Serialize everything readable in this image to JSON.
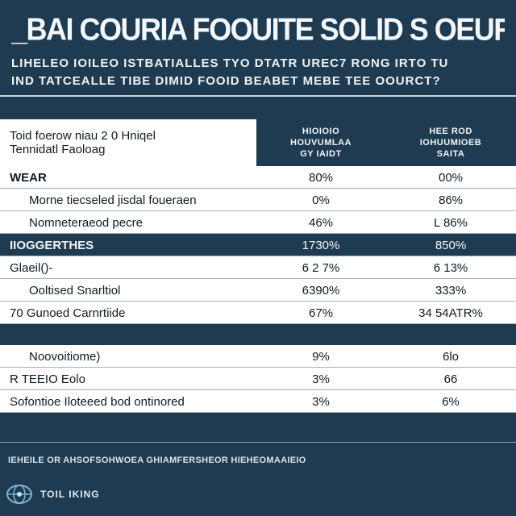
{
  "header": {
    "title": "_BAI COURIA FOOUITE SOLID S OEURT ESID",
    "subtitle_line1": "LIHELEO IOILEO ISTBATIALLES TYO DTATR UREC7 RONG IRTO TU",
    "subtitle_line2": "IND TATCEALLE TIBE DIMID FOOID BEABET MEBE TEE OOURCT?"
  },
  "table": {
    "head_left_line1": "Toid foerow niau 2 0 Hniqel",
    "head_left_line2": "Tennidatl Faoloag",
    "col1_header": [
      "HIOIOIO",
      "HOUVUMLAA",
      "GY IAIDT"
    ],
    "col2_header": [
      "HEE ROD",
      "IOHUUMIOEB",
      "SAITA"
    ],
    "rows": [
      {
        "label": "WEAR",
        "v1": "80%",
        "v2": "00%",
        "style": "white",
        "indent": 0,
        "bold": true
      },
      {
        "label": "Morne tiecseled jisdal foueraen",
        "v1": "0%",
        "v2": "86%",
        "style": "white",
        "indent": 1
      },
      {
        "label": "Nomneteraeod pecre",
        "v1": "46%",
        "v2": "L 86%",
        "style": "white",
        "indent": 1
      },
      {
        "label": "IIOGGERTHES",
        "v1": "1730%",
        "v2": "850%",
        "style": "dark",
        "indent": 0,
        "bold": true
      },
      {
        "label": "Glaeil()-",
        "v1": "6 2 7%",
        "v2": "6 13%",
        "style": "white",
        "indent": 0
      },
      {
        "label": "Ooltised Snarltiol",
        "v1": "6390%",
        "v2": "333%",
        "style": "white",
        "indent": 1
      },
      {
        "label": "70 Gunoed Carnrtiide",
        "v1": "67%",
        "v2": "34 54ATR%",
        "style": "white",
        "indent": 0
      },
      {
        "label": "",
        "v1": "",
        "v2": "",
        "style": "dark",
        "indent": 0,
        "spacer": true
      },
      {
        "label": "Noovoitiome)",
        "v1": "9%",
        "v2": "6lo",
        "style": "white",
        "indent": 1
      },
      {
        "label": "R TEEIO Eolo",
        "v1": "3%",
        "v2": "66",
        "style": "white",
        "indent": 0
      },
      {
        "label": "Sofontioe Iloteeed bod ontinored",
        "v1": "3%",
        "v2": "6%",
        "style": "white",
        "indent": 0
      }
    ]
  },
  "footnote": "IEHEILE OR AHSOFSOHWOEA GHIAMFERSHEOR HIEHEOMAAIEIO",
  "logo": {
    "text": "TOIL IKING",
    "icon": "globe-logo-icon"
  },
  "colors": {
    "background": "#1e3b52",
    "band": "#ffffff",
    "text_dark": "#111a22"
  }
}
